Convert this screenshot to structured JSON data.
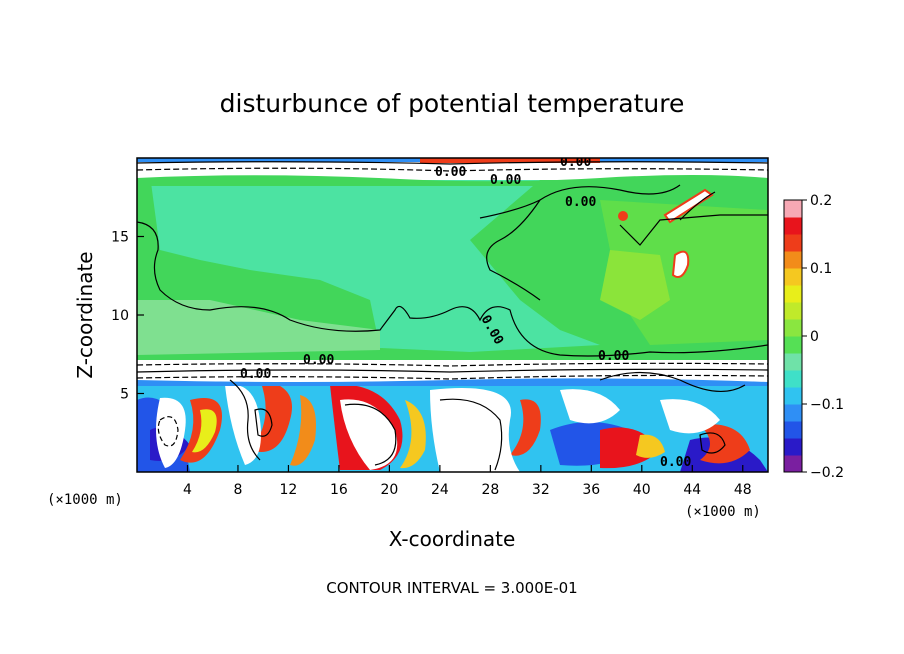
{
  "chart_data": {
    "type": "heatmap",
    "title": "disturbunce of potential temperature",
    "xlabel": "X-coordinate",
    "ylabel": "Z-coordinate",
    "x_unit": "(×1000 m)",
    "y_unit": "(×1000 m)",
    "xlim": [
      0,
      50
    ],
    "ylim": [
      0,
      20
    ],
    "x_ticks": [
      "4",
      "8",
      "12",
      "16",
      "20",
      "24",
      "28",
      "32",
      "36",
      "40",
      "44",
      "48"
    ],
    "y_ticks": [
      "5",
      "10",
      "15"
    ],
    "contour_interval": "CONTOUR INTERVAL = 3.000E-01",
    "contour_labels": [
      "0.00",
      "0.00",
      "0.00",
      "0.00",
      "0.00",
      "0.00",
      "0.00",
      "0.00",
      "0.00"
    ],
    "colorbar": {
      "range": [
        -0.2,
        0.2
      ],
      "tick_labels": [
        "0.2",
        "0.1",
        "0",
        "−0.1",
        "−0.2"
      ],
      "colors": [
        "#7a1fa0",
        "#2a1ac8",
        "#2255e8",
        "#2f8ff5",
        "#30c3f0",
        "#3fe0c8",
        "#6fe2a8",
        "#55e055",
        "#8ae640",
        "#c0ea2a",
        "#e8ee1a",
        "#f5c820",
        "#f28c1a",
        "#ee3d1a",
        "#e8141c",
        "#f7a8b4"
      ]
    }
  }
}
